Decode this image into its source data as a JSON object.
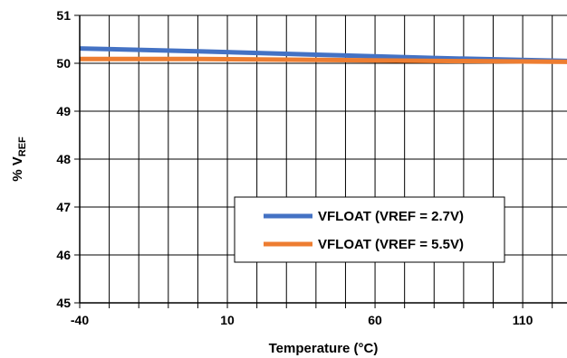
{
  "chart_data": {
    "type": "line",
    "xlabel": "Temperature (°C)",
    "ylabel": "% V",
    "ylabel_subscript": "REF",
    "xlim": [
      -40,
      125
    ],
    "ylim": [
      45,
      51
    ],
    "x_ticks": [
      -40,
      10,
      60,
      110
    ],
    "x_tick_labels": [
      "-40",
      "10",
      "60",
      "110"
    ],
    "y_ticks": [
      45,
      46,
      47,
      48,
      49,
      50,
      51
    ],
    "y_tick_labels": [
      "45",
      "46",
      "47",
      "48",
      "49",
      "50",
      "51"
    ],
    "x_grid_step": 10,
    "grid": true,
    "legend_position": "bottom-right",
    "series": [
      {
        "name": "VFLOAT (VREF = 2.7V)",
        "color": "#4472C4",
        "x": [
          -40,
          0,
          40,
          80,
          125
        ],
        "y": [
          50.31,
          50.25,
          50.18,
          50.11,
          50.05
        ]
      },
      {
        "name": "VFLOAT (VREF = 5.5V)",
        "color": "#ED7D31",
        "x": [
          -40,
          0,
          40,
          80,
          125
        ],
        "y": [
          50.09,
          50.09,
          50.07,
          50.05,
          50.03
        ]
      }
    ]
  }
}
